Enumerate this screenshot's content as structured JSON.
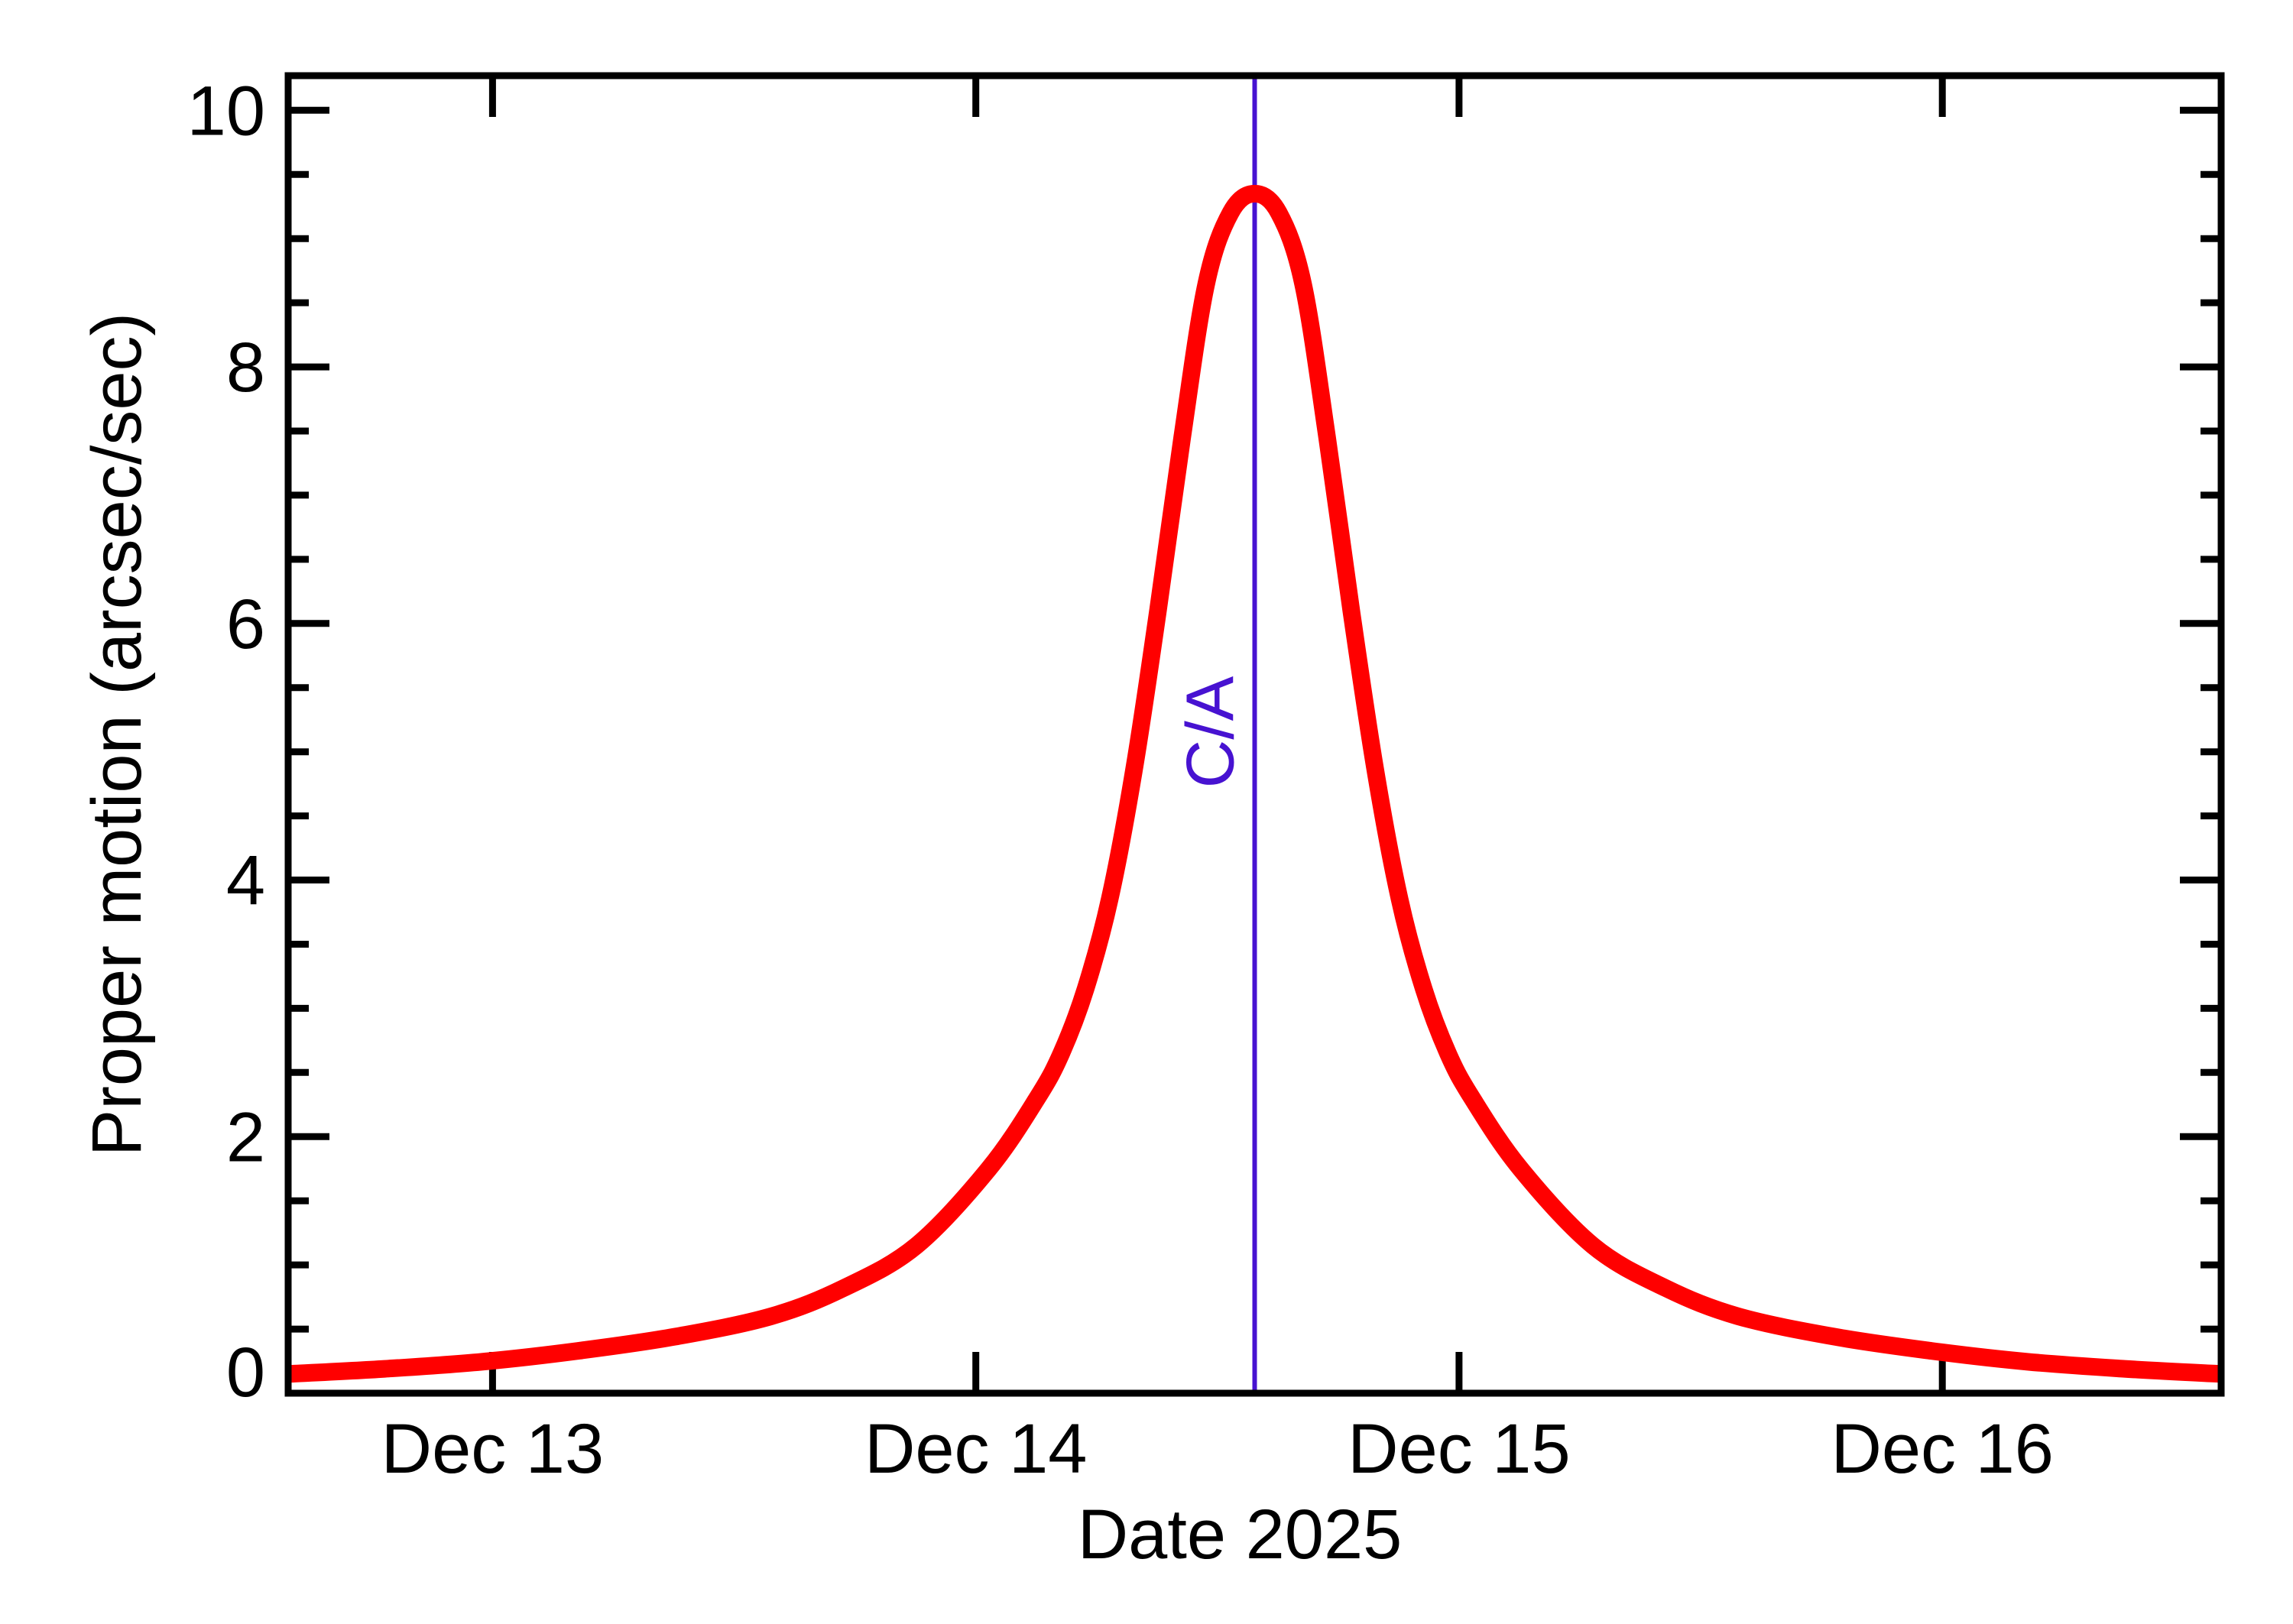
{
  "page": {
    "background": "#ffffff"
  },
  "chart_data": {
    "type": "line",
    "title": "",
    "xlabel": "Date 2025",
    "ylabel": "Proper motion (arcsec/sec)",
    "x_unit": "day of December 2025, fractional",
    "xlim": [
      12.577,
      16.577
    ],
    "ylim": [
      0,
      10.27
    ],
    "grid": false,
    "frame_color": "#000000",
    "x_ticks": [
      {
        "value": 13,
        "label": "Dec 13"
      },
      {
        "value": 14,
        "label": "Dec 14"
      },
      {
        "value": 15,
        "label": "Dec 15"
      },
      {
        "value": 16,
        "label": "Dec 16"
      }
    ],
    "y_ticks": [
      {
        "value": 0,
        "label": "0"
      },
      {
        "value": 2,
        "label": "2"
      },
      {
        "value": 4,
        "label": "4"
      },
      {
        "value": 6,
        "label": "6"
      },
      {
        "value": 8,
        "label": "8"
      },
      {
        "value": 10,
        "label": "10"
      }
    ],
    "y_minor_tick_step": 0.5,
    "series": [
      {
        "name": "proper-motion",
        "color": "#ff0000",
        "line_width": 23,
        "x": [
          12.577,
          12.777,
          12.977,
          13.177,
          13.377,
          13.577,
          13.727,
          13.877,
          14.027,
          14.127,
          14.177,
          14.227,
          14.277,
          14.327,
          14.377,
          14.427,
          14.477,
          14.527,
          14.577,
          14.627,
          14.677,
          14.727,
          14.777,
          14.827,
          14.877,
          14.927,
          14.977,
          15.027,
          15.127,
          15.277,
          15.427,
          15.577,
          15.777,
          15.977,
          16.177,
          16.377,
          16.577
        ],
        "y": [
          0.15,
          0.19,
          0.245,
          0.33,
          0.44,
          0.6,
          0.82,
          1.15,
          1.75,
          2.3,
          2.65,
          3.15,
          3.85,
          4.85,
          6.1,
          7.45,
          8.65,
          9.2,
          9.35,
          9.2,
          8.65,
          7.45,
          6.1,
          4.85,
          3.85,
          3.15,
          2.65,
          2.3,
          1.75,
          1.15,
          0.82,
          0.6,
          0.44,
          0.33,
          0.245,
          0.19,
          0.15
        ]
      }
    ],
    "annotation_vline": {
      "x": 14.577,
      "label": "C/A",
      "color": "#4712d1",
      "line_width": 6
    },
    "peak": {
      "x": 14.577,
      "y": 9.35
    }
  }
}
